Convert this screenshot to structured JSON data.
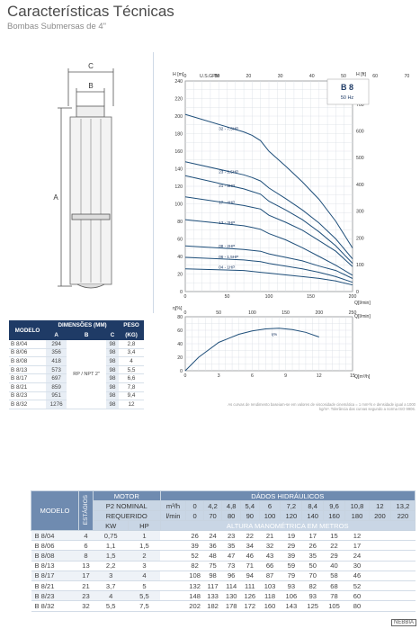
{
  "header": {
    "title": "Características Técnicas",
    "subtitle": "Bombas Submersas de 4\""
  },
  "drawing": {
    "dim_c": "C",
    "dim_b": "B",
    "dim_a": "A"
  },
  "dims_table": {
    "headers": {
      "model": "MODELO",
      "dims": "DIMENSÕES (MM)",
      "a": "A",
      "b": "B",
      "c": "C",
      "weight": "PESO",
      "weight_unit": "(KG)",
      "b_value": "RP / NPT 2\""
    },
    "rows": [
      {
        "model": "B 8/04",
        "a": "294",
        "c": "98",
        "w": "2,8"
      },
      {
        "model": "B 8/06",
        "a": "356",
        "c": "98",
        "w": "3,4"
      },
      {
        "model": "B 8/08",
        "a": "418",
        "c": "98",
        "w": "4"
      },
      {
        "model": "B 8/13",
        "a": "573",
        "c": "98",
        "w": "5,5"
      },
      {
        "model": "B 8/17",
        "a": "697",
        "c": "98",
        "w": "6,6"
      },
      {
        "model": "B 8/21",
        "a": "859",
        "c": "98",
        "w": "7,8"
      },
      {
        "model": "B 8/23",
        "a": "951",
        "c": "98",
        "w": "9,4"
      },
      {
        "model": "B 8/32",
        "a": "1276",
        "c": "98",
        "w": "12"
      }
    ]
  },
  "chart_data": [
    {
      "type": "line",
      "title": "B 8",
      "subtitle": "50 Hz",
      "ylabel": "H [m]",
      "ylabel2": "H [ft]",
      "xlabel": "Q[m³/h]",
      "xlabel_top": "U.S.GPM",
      "xlabel2": "Q[l/min]",
      "ylim": [
        0,
        240
      ],
      "xlim": [
        0,
        200
      ],
      "yticks": [
        0,
        20,
        40,
        60,
        80,
        100,
        120,
        140,
        160,
        180,
        200,
        220,
        240
      ],
      "xticks": [
        0,
        50,
        100,
        150,
        200
      ],
      "ft_ticks": [
        "700",
        "600",
        "500",
        "400",
        "300",
        "200",
        "100",
        "0"
      ],
      "gpm_ticks": [
        "0",
        "10",
        "20",
        "30",
        "40",
        "50",
        "60",
        "70"
      ],
      "x": [
        0,
        70,
        80,
        90,
        100,
        120,
        140,
        160,
        180,
        200
      ],
      "series": [
        {
          "name": "32 - 7,5HP",
          "values": [
            202,
            182,
            178,
            172,
            160,
            143,
            125,
            105,
            80,
            null
          ]
        },
        {
          "name": "23 - 5,5HP",
          "values": [
            148,
            133,
            130,
            126,
            118,
            106,
            93,
            78,
            60,
            null
          ]
        },
        {
          "name": "21 - 5HP",
          "values": [
            132,
            117,
            114,
            111,
            103,
            93,
            82,
            68,
            52,
            null
          ]
        },
        {
          "name": "17 - 4HP",
          "values": [
            108,
            98,
            96,
            94,
            87,
            79,
            70,
            58,
            46,
            null
          ]
        },
        {
          "name": "13 - 3HP",
          "values": [
            82,
            75,
            73,
            71,
            66,
            59,
            50,
            40,
            30,
            null
          ]
        },
        {
          "name": "08 - 2HP",
          "values": [
            52,
            48,
            47,
            46,
            43,
            39,
            35,
            29,
            24,
            null
          ]
        },
        {
          "name": "06 - 1,5HP",
          "values": [
            39,
            36,
            35,
            34,
            32,
            29,
            26,
            22,
            17,
            null
          ]
        },
        {
          "name": "04 - 1HP",
          "values": [
            26,
            24,
            23,
            22,
            21,
            19,
            17,
            15,
            12,
            null
          ]
        }
      ]
    },
    {
      "type": "line",
      "ylabel": "η[%]",
      "ylim": [
        0,
        80
      ],
      "xlim": [
        0,
        200
      ],
      "yticks": [
        0,
        20,
        40,
        60,
        80
      ],
      "xticks": [
        0,
        50,
        100,
        150,
        200,
        250
      ],
      "x2ticks": [
        "0",
        "3",
        "6",
        "9",
        "12",
        "15"
      ],
      "xlabel": "Q[l/min]",
      "xlabel2": "Q[m³/h]",
      "series": [
        {
          "name": "η%",
          "x": [
            0,
            20,
            50,
            80,
            100,
            120,
            140,
            160,
            180,
            200
          ],
          "values": [
            0,
            20,
            42,
            54,
            59,
            62,
            63,
            61,
            57,
            50
          ]
        }
      ]
    }
  ],
  "chart_note": "As curvas de rendimento baseiam-se em valores de viscosidade cinemática = 1 mm²/s e densidade igual a 1000 kg/m³. Tolerância das curvas segundo a norma ISO 9906.",
  "data_table": {
    "h_model": "MODELO",
    "h_stages": "ESTÁGIOS",
    "h_motor": "MOTOR",
    "h_p2": "P2 NOMINAL",
    "h_req": "REQUERIDO",
    "h_kw": "KW",
    "h_hp": "HP",
    "h_hydraulic": "DÁDOS HIDRÁULICOS",
    "h_m3h": "m³/h",
    "h_lmin": "l/min",
    "h_height": "ALTURA MANOMÉTRICA EM METROS",
    "q_m3h": [
      "0",
      "4,2",
      "4,8",
      "5,4",
      "6",
      "7,2",
      "8,4",
      "9,6",
      "10,8",
      "12",
      "13,2"
    ],
    "q_lmin": [
      "0",
      "70",
      "80",
      "90",
      "100",
      "120",
      "140",
      "160",
      "180",
      "200",
      "220"
    ],
    "rows": [
      {
        "model": "B 8/04",
        "stages": "4",
        "kw": "0,75",
        "hp": "1",
        "h": [
          "26",
          "24",
          "23",
          "22",
          "21",
          "19",
          "17",
          "15",
          "12"
        ]
      },
      {
        "model": "B 8/06",
        "stages": "6",
        "kw": "1,1",
        "hp": "1,5",
        "h": [
          "39",
          "36",
          "35",
          "34",
          "32",
          "29",
          "26",
          "22",
          "17"
        ]
      },
      {
        "model": "B 8/08",
        "stages": "8",
        "kw": "1,5",
        "hp": "2",
        "h": [
          "52",
          "48",
          "47",
          "46",
          "43",
          "39",
          "35",
          "29",
          "24"
        ]
      },
      {
        "model": "B 8/13",
        "stages": "13",
        "kw": "2,2",
        "hp": "3",
        "h": [
          "82",
          "75",
          "73",
          "71",
          "66",
          "59",
          "50",
          "40",
          "30"
        ]
      },
      {
        "model": "B 8/17",
        "stages": "17",
        "kw": "3",
        "hp": "4",
        "h": [
          "108",
          "98",
          "96",
          "94",
          "87",
          "79",
          "70",
          "58",
          "46"
        ]
      },
      {
        "model": "B 8/21",
        "stages": "21",
        "kw": "3,7",
        "hp": "5",
        "h": [
          "132",
          "117",
          "114",
          "111",
          "103",
          "93",
          "82",
          "68",
          "52"
        ]
      },
      {
        "model": "B 8/23",
        "stages": "23",
        "kw": "4",
        "hp": "5,5",
        "h": [
          "148",
          "133",
          "130",
          "126",
          "118",
          "106",
          "93",
          "78",
          "60"
        ]
      },
      {
        "model": "B 8/32",
        "stages": "32",
        "kw": "5,5",
        "hp": "7,5",
        "h": [
          "202",
          "182",
          "178",
          "172",
          "160",
          "143",
          "125",
          "105",
          "80"
        ]
      }
    ]
  },
  "logo": "NEBBIA"
}
